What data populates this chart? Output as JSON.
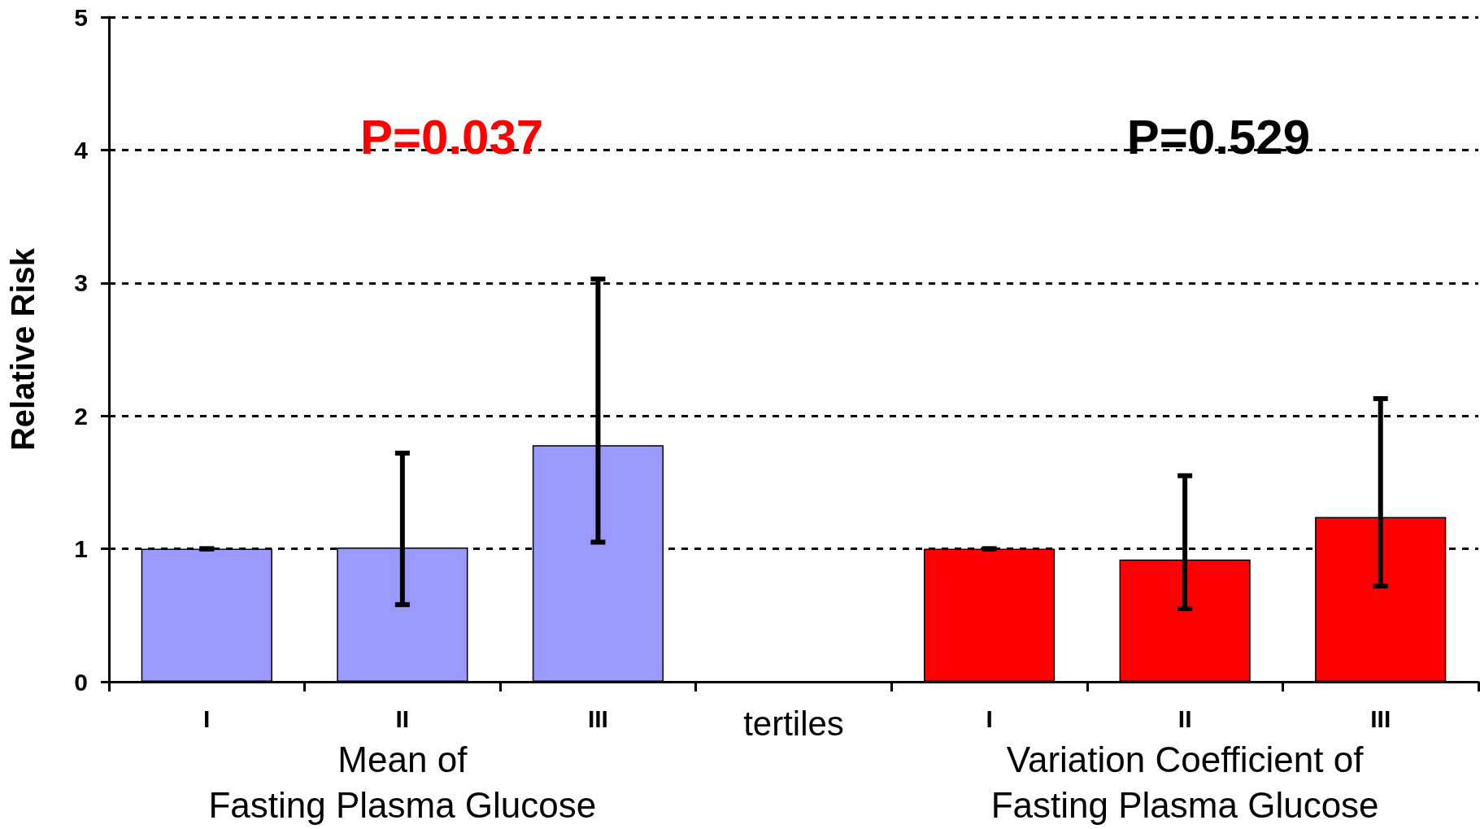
{
  "chart_data": {
    "type": "bar",
    "ylabel": "Relative Risk",
    "categories": [
      "I",
      "II",
      "III",
      "tertiles",
      "I",
      "II",
      "III"
    ],
    "values": [
      1.0,
      1.01,
      1.78,
      null,
      1.0,
      0.92,
      1.24
    ],
    "colors": [
      "#9999ff",
      "#9999ff",
      "#9999ff",
      "#ffffff",
      "#ff0000",
      "#ff0000",
      "#ff0000"
    ],
    "errors": [
      [
        1.0,
        1.0
      ],
      [
        0.58,
        1.72
      ],
      [
        1.05,
        3.03
      ],
      null,
      [
        1.0,
        1.0
      ],
      [
        0.55,
        1.55
      ],
      [
        0.72,
        2.13
      ]
    ],
    "ylim": [
      0,
      5
    ],
    "yticks": [
      0,
      1,
      2,
      3,
      4,
      5
    ],
    "grid": "y",
    "annotations": [
      "P=0.037",
      "P=0.529",
      "Mean of\nFasting Plasma Glucose",
      "Variation Coefficient of\nFasting Plasma Glucose"
    ]
  }
}
